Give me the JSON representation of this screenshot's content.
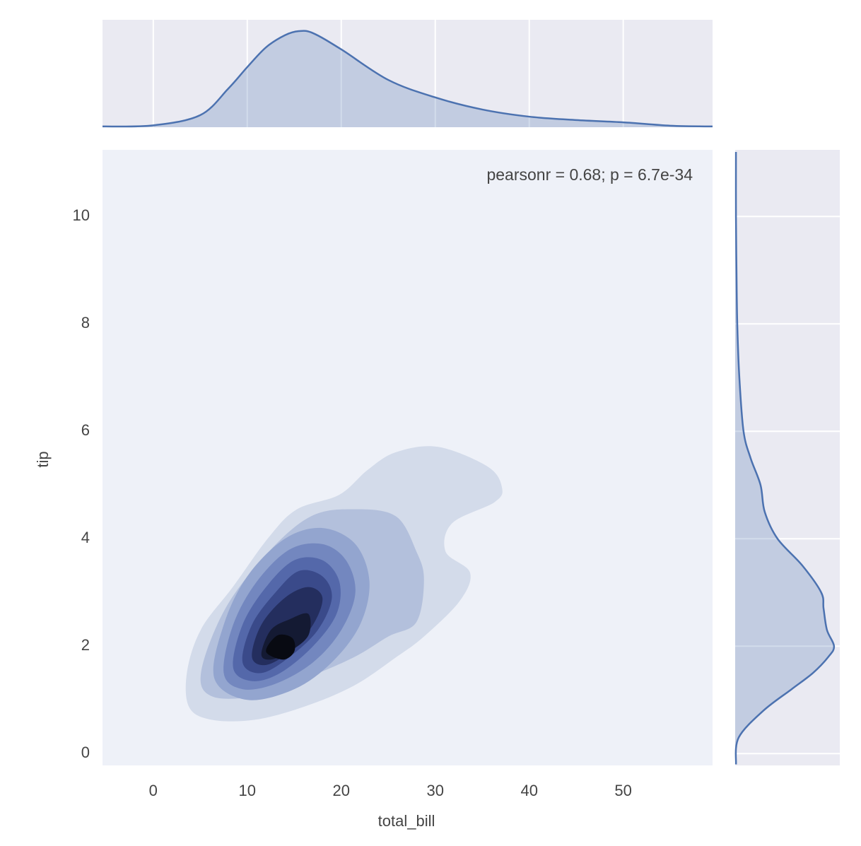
{
  "chart_data": [
    {
      "type": "contour",
      "x_label": "total_bill",
      "y_label": "tip",
      "annotation": "pearsonr = 0.68; p = 6.7e-34",
      "xlim": [
        -5.4,
        59.5
      ],
      "ylim": [
        -0.22,
        11.24
      ],
      "xticks": [
        0,
        10,
        20,
        30,
        40,
        50
      ],
      "yticks": [
        0,
        2,
        4,
        6,
        8,
        10
      ],
      "contours": [
        {
          "color": "#d3dbea",
          "x": [
            3.8,
            3.6,
            5.1,
            8.5,
            12.3,
            15.3,
            19.8,
            22.8,
            25.8,
            30.3,
            35.6,
            37.1,
            36.3,
            31.8,
            31.1,
            33.7,
            32.6,
            28.8,
            25.8,
            21.3,
            16.0,
            10.8,
            6.2
          ],
          "y": [
            0.87,
            1.53,
            2.32,
            3.11,
            4.03,
            4.55,
            4.82,
            5.28,
            5.61,
            5.71,
            5.34,
            4.95,
            4.68,
            4.29,
            3.76,
            3.37,
            2.84,
            2.18,
            1.79,
            1.26,
            0.87,
            0.63,
            0.63
          ]
        },
        {
          "color": "#b3c0dc",
          "x": [
            5.1,
            7.7,
            12.3,
            16.8,
            21.3,
            25.8,
            28.0,
            28.8,
            28.0,
            25.0,
            21.3,
            16.0,
            10.8,
            6.2
          ],
          "y": [
            1.53,
            2.71,
            3.76,
            4.42,
            4.55,
            4.42,
            3.76,
            3.24,
            2.45,
            2.18,
            1.79,
            1.39,
            1.07,
            1.07
          ]
        },
        {
          "color": "#93a5cf",
          "x": [
            6.5,
            7.5,
            10,
            14,
            18,
            21.5,
            23,
            22,
            19,
            15,
            10
          ],
          "y": [
            1.4,
            2.4,
            3.3,
            4.0,
            4.2,
            3.9,
            3.2,
            2.4,
            1.7,
            1.2,
            1.0
          ]
        },
        {
          "color": "#7387bf",
          "x": [
            7.5,
            8.5,
            11,
            14.5,
            18,
            20.5,
            21.5,
            20,
            17,
            13,
            9.5
          ],
          "y": [
            1.5,
            2.4,
            3.2,
            3.8,
            3.9,
            3.6,
            3.0,
            2.3,
            1.7,
            1.3,
            1.2
          ]
        },
        {
          "color": "#5468aa",
          "x": [
            8.5,
            9.5,
            12,
            15,
            18,
            19.8,
            19.5,
            17,
            13.5,
            10.5
          ],
          "y": [
            1.6,
            2.4,
            3.1,
            3.6,
            3.6,
            3.2,
            2.6,
            2.0,
            1.5,
            1.35
          ]
        },
        {
          "color": "#3a4a8a",
          "x": [
            9.5,
            10.5,
            13,
            15.5,
            18,
            19,
            17.5,
            14.5,
            11.5
          ],
          "y": [
            1.7,
            2.4,
            3.0,
            3.4,
            3.3,
            2.9,
            2.3,
            1.8,
            1.5
          ]
        },
        {
          "color": "#242e5e",
          "x": [
            10.5,
            11.5,
            14,
            16.5,
            18,
            17,
            14.5,
            12
          ],
          "y": [
            1.8,
            2.4,
            2.9,
            3.1,
            2.9,
            2.4,
            1.9,
            1.65
          ]
        },
        {
          "color": "#141a33",
          "x": [
            11.5,
            12.5,
            14.5,
            16.5,
            16.5,
            14.5,
            12.5
          ],
          "y": [
            1.85,
            2.3,
            2.5,
            2.6,
            2.2,
            1.9,
            1.75
          ]
        },
        {
          "color": "#080a12",
          "x": [
            12,
            13.2,
            14.8,
            15,
            13.8
          ],
          "y": [
            1.9,
            2.2,
            2.15,
            1.9,
            1.75
          ]
        }
      ]
    },
    {
      "type": "area",
      "orientation": "vertical",
      "color": "#4c72b0",
      "ylim": [
        0,
        0.057
      ],
      "x": [
        -5.4,
        0,
        5,
        8,
        10,
        12,
        14,
        15.5,
        17,
        20,
        25,
        30,
        35,
        40,
        45,
        50,
        55,
        59.5
      ],
      "values": [
        0.0004,
        0.001,
        0.0064,
        0.0206,
        0.0319,
        0.0424,
        0.0488,
        0.051,
        0.0499,
        0.0413,
        0.0251,
        0.0158,
        0.0094,
        0.0056,
        0.0038,
        0.0026,
        0.0008,
        0.0004
      ]
    },
    {
      "type": "area",
      "orientation": "horizontal",
      "color": "#4c72b0",
      "xlim": [
        0,
        0.4
      ],
      "y": [
        -0.2,
        0.3,
        0.8,
        1.2,
        1.5,
        1.8,
        2.0,
        2.3,
        2.7,
        3.0,
        3.5,
        4.0,
        4.5,
        5.0,
        5.5,
        6.0,
        7,
        8,
        9,
        10,
        11.2
      ],
      "values": [
        0.003,
        0.0135,
        0.108,
        0.216,
        0.297,
        0.356,
        0.378,
        0.351,
        0.338,
        0.329,
        0.257,
        0.162,
        0.113,
        0.097,
        0.059,
        0.032,
        0.016,
        0.008,
        0.005,
        0.003,
        0.003
      ]
    }
  ]
}
